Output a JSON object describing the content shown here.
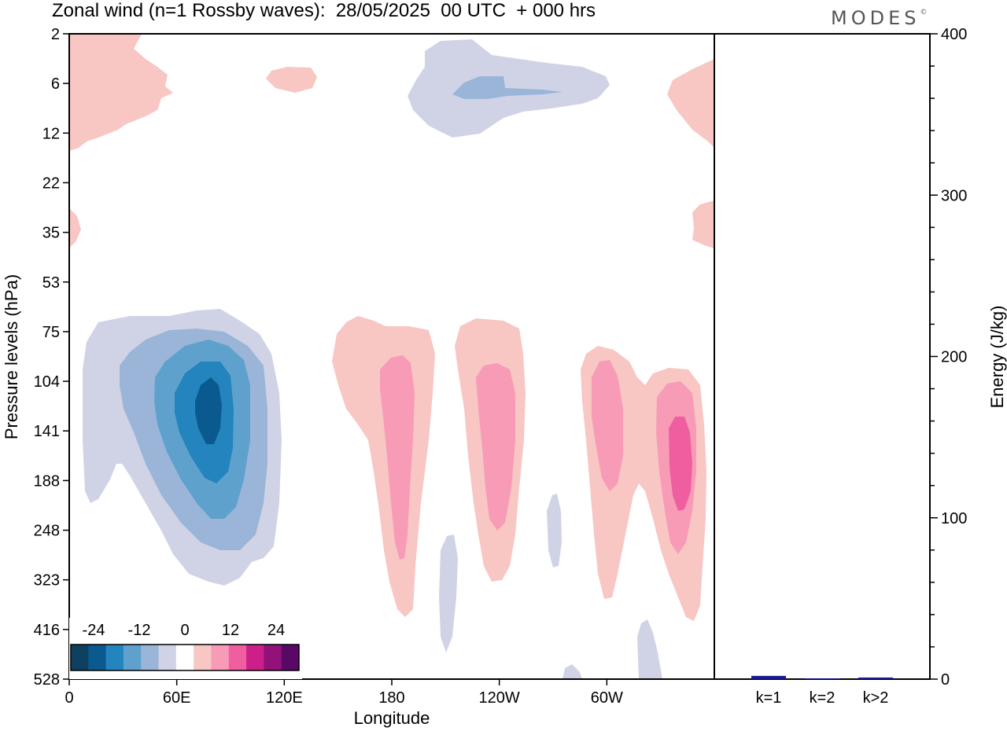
{
  "title": "Zonal wind (n=1 Rossby waves):  28/05/2025  00 UTC  + 000 hrs",
  "logo": "MODES",
  "logo_mark": "©",
  "colors": {
    "blue_levels": [
      "#0f3f61",
      "#0b5a8f",
      "#2484be",
      "#5fa1cd",
      "#9ab5d8",
      "#d0d3e6"
    ],
    "red_levels": [
      "#f8c6c3",
      "#f89bb6",
      "#ef5fa0",
      "#cc1f8a",
      "#92127a",
      "#5a0866"
    ],
    "white": "#ffffff",
    "bar": "#1a1a8c"
  },
  "chart_data": [
    {
      "type": "heatmap",
      "title": "Zonal wind (n=1 Rossby waves):  28/05/2025  00 UTC  + 000 hrs",
      "xlabel": "Longitude",
      "ylabel": "Pressure levels (hPa)",
      "x_ticks": [
        "0",
        "60E",
        "120E",
        "180",
        "120W",
        "60W"
      ],
      "x_tick_values": [
        0,
        60,
        120,
        180,
        240,
        300
      ],
      "xlim": [
        0,
        360
      ],
      "y_ticks": [
        "2",
        "6",
        "12",
        "22",
        "35",
        "53",
        "75",
        "104",
        "141",
        "188",
        "248",
        "323",
        "416",
        "528"
      ],
      "y_scale": "log",
      "colorbar_ticks": [
        "-24",
        "-12",
        "0",
        "12",
        "24"
      ],
      "colorbar_levels": [
        -30,
        -25,
        -20,
        -15,
        -10,
        -5,
        0,
        5,
        10,
        15,
        20,
        25,
        30
      ],
      "features": [
        {
          "sign": "negative",
          "lon": 77,
          "p": 141,
          "max": -25
        },
        {
          "sign": "positive",
          "lon": 183,
          "p": 170,
          "max": 15
        },
        {
          "sign": "positive",
          "lon": 235,
          "p": 150,
          "max": 15
        },
        {
          "sign": "positive",
          "lon": 294,
          "p": 135,
          "max": 15
        },
        {
          "sign": "positive",
          "lon": 341,
          "p": 150,
          "max": 20
        },
        {
          "sign": "negative",
          "lon": 240,
          "p": 6,
          "max": -10
        },
        {
          "sign": "positive",
          "lon": 10,
          "p": 8,
          "max": 5
        },
        {
          "sign": "positive",
          "lon": 350,
          "p": 8,
          "max": 5
        }
      ]
    },
    {
      "type": "bar",
      "categories": [
        "k=1",
        "k=2",
        "k>2"
      ],
      "values": [
        2,
        0.5,
        1
      ],
      "ylabel": "Energy (J/kg)",
      "ylim": [
        0,
        400
      ],
      "y_ticks": [
        "0",
        "100",
        "200",
        "300",
        "400"
      ],
      "y_tick_values": [
        0,
        100,
        200,
        300,
        400
      ],
      "grid": false
    }
  ]
}
